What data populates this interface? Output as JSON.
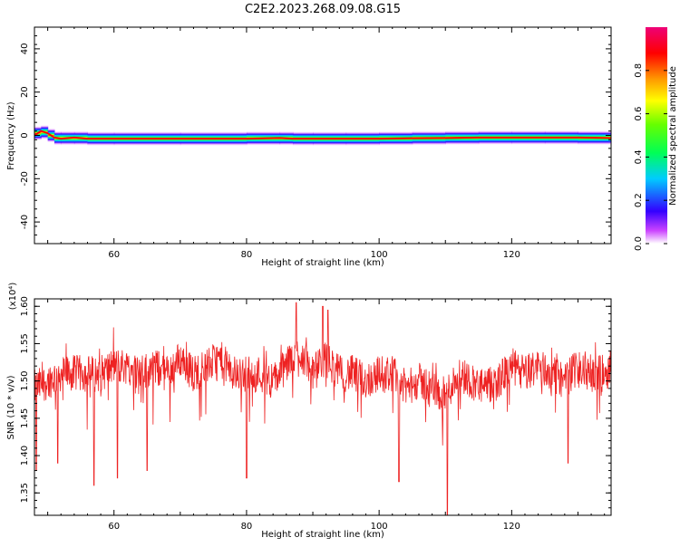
{
  "title": "C2E2.2023.268.09.08.G15",
  "chart_data": [
    {
      "type": "heatmap",
      "xlabel": "Height of straight line (km)",
      "ylabel": "Frequency (Hz)",
      "xlim": [
        48,
        135
      ],
      "ylim": [
        -50,
        50
      ],
      "x_ticks": [
        "60",
        "80",
        "100",
        "120"
      ],
      "y_ticks": [
        "40",
        "20",
        "0",
        "-20",
        "-40"
      ],
      "colorbar": {
        "label": "Normalized spectral amplitude",
        "ticks": [
          "0.0",
          "0.2",
          "0.4",
          "0.6",
          "0.8"
        ],
        "range": [
          0,
          1
        ]
      },
      "ridge": {
        "x": [
          48,
          49,
          50,
          51,
          52,
          54,
          56,
          60,
          70,
          80,
          85,
          87,
          90,
          95,
          100,
          105,
          110,
          115,
          120,
          125,
          130,
          135
        ],
        "frequency": [
          0,
          2,
          1,
          -1,
          -1.5,
          -1,
          -1.5,
          -1.5,
          -1.5,
          -1.5,
          -1.2,
          -1.5,
          -1.5,
          -1.5,
          -1.5,
          -1.3,
          -1.2,
          -1,
          -1,
          -1,
          -1,
          -1.2
        ]
      },
      "colors": {
        "series": "#ff0000"
      }
    },
    {
      "type": "line",
      "xlabel": "Height of straight line (km)",
      "ylabel": "SNR (10 * v/v)",
      "y_multiplier": "(x10⁴)",
      "xlim": [
        48,
        135
      ],
      "ylim": [
        1.32,
        1.61
      ],
      "x_ticks": [
        "60",
        "80",
        "100",
        "120"
      ],
      "y_ticks": [
        "1.60",
        "1.55",
        "1.50",
        "1.45",
        "1.40",
        "1.35"
      ],
      "series": [
        {
          "color": "#ee2222",
          "x": [
            48,
            50,
            52,
            54,
            56,
            58,
            60,
            62,
            64,
            66,
            68,
            70,
            72,
            74,
            76,
            78,
            80,
            82,
            84,
            86,
            88,
            90,
            92,
            94,
            96,
            98,
            100,
            102,
            104,
            106,
            108,
            110,
            112,
            114,
            116,
            118,
            120,
            122,
            124,
            126,
            128,
            130,
            132,
            134,
            135
          ],
          "values": [
            1.49,
            1.5,
            1.51,
            1.51,
            1.51,
            1.51,
            1.52,
            1.52,
            1.51,
            1.52,
            1.51,
            1.53,
            1.51,
            1.52,
            1.53,
            1.51,
            1.51,
            1.51,
            1.5,
            1.52,
            1.54,
            1.51,
            1.53,
            1.51,
            1.51,
            1.5,
            1.51,
            1.51,
            1.49,
            1.5,
            1.49,
            1.48,
            1.51,
            1.5,
            1.49,
            1.5,
            1.52,
            1.51,
            1.52,
            1.51,
            1.5,
            1.52,
            1.51,
            1.51,
            1.52
          ],
          "max_spikes": [
            [
              87.5,
              1.605
            ],
            [
              91.5,
              1.6
            ],
            [
              92.3,
              1.595
            ]
          ],
          "min_spikes": [
            [
              48.3,
              1.38
            ],
            [
              51.5,
              1.39
            ],
            [
              57,
              1.36
            ],
            [
              60.5,
              1.37
            ],
            [
              65,
              1.38
            ],
            [
              80,
              1.37
            ],
            [
              103,
              1.365
            ],
            [
              110.3,
              1.32
            ],
            [
              128.5,
              1.39
            ]
          ]
        }
      ]
    }
  ]
}
